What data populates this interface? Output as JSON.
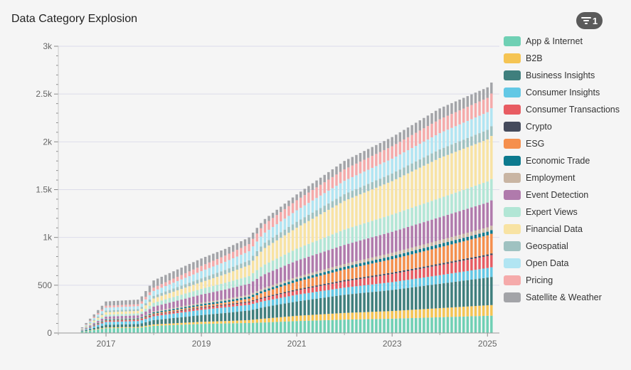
{
  "header": {
    "title": "Data Category Explosion",
    "filter_count": "1",
    "filter_icon": "filter-icon"
  },
  "chart_data": {
    "type": "bar",
    "stacked": true,
    "title": "Data Category Explosion",
    "xlabel": "",
    "ylabel": "",
    "xlim": [
      "2016-01",
      "2025-03"
    ],
    "ylim": [
      0,
      3000
    ],
    "x_ticks": [
      "2017",
      "2019",
      "2021",
      "2023",
      "2025"
    ],
    "y_ticks": [
      "0",
      "500",
      "1k",
      "1.5k",
      "2k",
      "2.5k",
      "3k"
    ],
    "grid": true,
    "legend_position": "right",
    "bar_start": "2016-07",
    "bar_end": "2025-02",
    "anchor_years": [
      2016.5,
      2017.0,
      2017.7,
      2018.0,
      2019.0,
      2019.5,
      2020.0,
      2020.3,
      2021.0,
      2022.0,
      2023.0,
      2024.0,
      2025.0,
      2025.15
    ],
    "anchor_totals": [
      60,
      330,
      350,
      550,
      780,
      880,
      1000,
      1180,
      1450,
      1800,
      2050,
      2350,
      2570,
      2660
    ],
    "series": [
      {
        "name": "App & Internet",
        "color": "#6fd0b4",
        "anchor_values": [
          12,
          50,
          55,
          75,
          95,
          100,
          105,
          110,
          125,
          140,
          150,
          165,
          180,
          182
        ]
      },
      {
        "name": "B2B",
        "color": "#f5c453",
        "anchor_values": [
          2,
          8,
          9,
          15,
          22,
          25,
          30,
          40,
          55,
          70,
          80,
          95,
          110,
          112
        ]
      },
      {
        "name": "Business Insights",
        "color": "#3f7f7d",
        "anchor_values": [
          5,
          28,
          30,
          45,
          70,
          85,
          100,
          120,
          150,
          190,
          220,
          255,
          290,
          298
        ]
      },
      {
        "name": "Consumer Insights",
        "color": "#63c8e5",
        "anchor_values": [
          6,
          30,
          31,
          40,
          55,
          58,
          60,
          63,
          70,
          75,
          82,
          90,
          100,
          102
        ]
      },
      {
        "name": "Consumer Transactions",
        "color": "#e85c62",
        "anchor_values": [
          2,
          10,
          11,
          14,
          20,
          22,
          25,
          32,
          45,
          65,
          85,
          105,
          125,
          130
        ]
      },
      {
        "name": "Crypto",
        "color": "#454b5c",
        "anchor_values": [
          0,
          3,
          3,
          5,
          8,
          9,
          10,
          11,
          12,
          14,
          15,
          16,
          17,
          17
        ]
      },
      {
        "name": "ESG",
        "color": "#f58f4d",
        "anchor_values": [
          1,
          5,
          6,
          10,
          15,
          20,
          30,
          50,
          80,
          110,
          140,
          170,
          200,
          210
        ]
      },
      {
        "name": "Economic Trade",
        "color": "#0d7a8e",
        "anchor_values": [
          1,
          8,
          8,
          12,
          17,
          19,
          20,
          21,
          25,
          28,
          32,
          35,
          38,
          39
        ]
      },
      {
        "name": "Employment",
        "color": "#c9b5a3",
        "anchor_values": [
          1,
          5,
          5,
          10,
          15,
          17,
          20,
          22,
          25,
          30,
          35,
          40,
          45,
          46
        ]
      },
      {
        "name": "Event Detection",
        "color": "#b07aac",
        "anchor_values": [
          4,
          25,
          27,
          50,
          85,
          100,
          115,
          140,
          170,
          200,
          220,
          240,
          260,
          270
        ]
      },
      {
        "name": "Expert Views",
        "color": "#b2e6d5",
        "anchor_values": [
          3,
          20,
          21,
          40,
          60,
          70,
          80,
          100,
          125,
          160,
          180,
          200,
          220,
          225
        ]
      },
      {
        "name": "Financial Data",
        "color": "#f8e3a3",
        "anchor_values": [
          4,
          25,
          26,
          45,
          70,
          90,
          115,
          170,
          220,
          300,
          350,
          420,
          440,
          460
        ]
      },
      {
        "name": "Geospatial",
        "color": "#9fc2c1",
        "anchor_values": [
          3,
          18,
          18,
          28,
          40,
          45,
          50,
          55,
          62,
          70,
          80,
          90,
          100,
          104
        ]
      },
      {
        "name": "Open Data",
        "color": "#b1e5f2",
        "anchor_values": [
          4,
          30,
          31,
          50,
          75,
          85,
          95,
          105,
          120,
          140,
          155,
          170,
          185,
          190
        ]
      },
      {
        "name": "Pricing",
        "color": "#f5aaaa",
        "anchor_values": [
          3,
          20,
          21,
          35,
          55,
          65,
          75,
          90,
          105,
          120,
          130,
          145,
          150,
          157
        ]
      },
      {
        "name": "Satellite & Weather",
        "color": "#a3a4a8",
        "anchor_values": [
          9,
          45,
          48,
          76,
          78,
          70,
          70,
          51,
          61,
          88,
          96,
          114,
          110,
          118
        ]
      }
    ]
  }
}
